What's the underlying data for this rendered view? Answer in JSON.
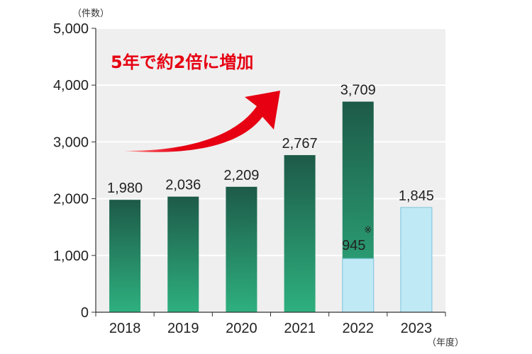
{
  "chart_data": {
    "type": "bar",
    "categories": [
      "2018",
      "2019",
      "2020",
      "2021",
      "2022",
      "2023"
    ],
    "values": [
      1980,
      2036,
      2209,
      2767,
      3709,
      1845
    ],
    "value_labels": [
      "1,980",
      "2,036",
      "2,209",
      "2,767",
      "3,709",
      "1,845"
    ],
    "highlight_segment": {
      "category": "2022",
      "value": 945,
      "label": "945",
      "mark": "※"
    },
    "ylim": [
      0,
      5000
    ],
    "yticks": [
      0,
      1000,
      2000,
      3000,
      4000,
      5000
    ],
    "ytick_labels": [
      "0",
      "1,000",
      "2,000",
      "3,000",
      "4,000",
      "5,000"
    ],
    "y_unit": "（件数）",
    "x_unit": "（年度）",
    "annotation": "5年で約2倍に増加",
    "grid": true,
    "colors": {
      "bar_dark": "#1d5a48",
      "bar_light": "#2eb07f",
      "light_bar": "#bfe9f5",
      "light_bar_border": "#7ac3dd",
      "plot_background": "#efefef",
      "arrow": "#e60012",
      "annotation_text": "#e60012"
    }
  }
}
